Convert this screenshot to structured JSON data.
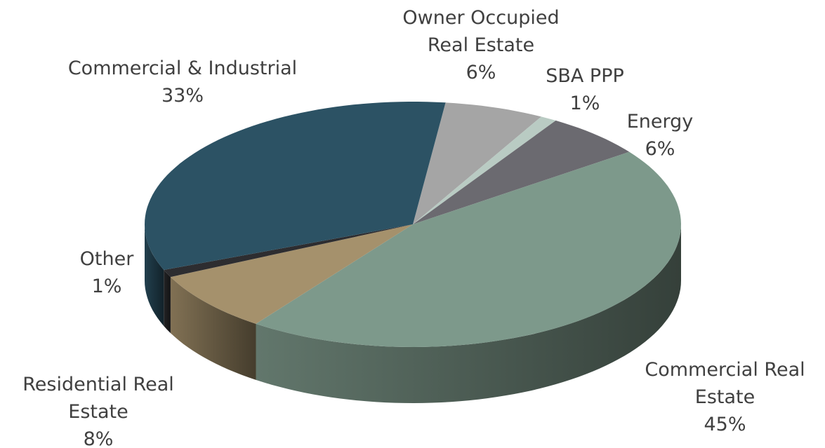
{
  "chart_data": {
    "type": "pie3d",
    "categories": [
      "Owner Occupied Real Estate",
      "SBA PPP",
      "Energy",
      "Commercial Real Estate",
      "Residential Real Estate",
      "Other",
      "Commercial & Industrial"
    ],
    "values": [
      6,
      1,
      6,
      45,
      8,
      1,
      33
    ],
    "value_labels": [
      "6%",
      "1%",
      "6%",
      "45%",
      "8%",
      "1%",
      "33%"
    ],
    "colors": [
      "#a5a5a5",
      "#b9cbc3",
      "#6b6a70",
      "#7d998b",
      "#a5916c",
      "#2d2d30",
      "#2c5264"
    ]
  }
}
